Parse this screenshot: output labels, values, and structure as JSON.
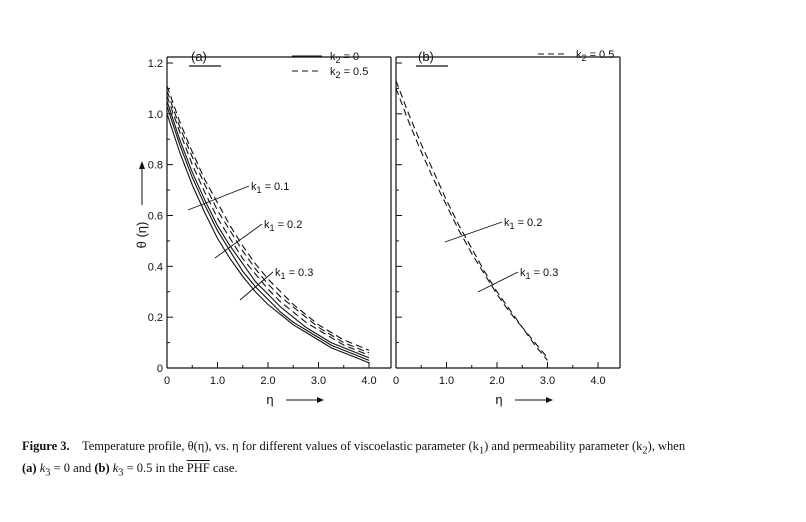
{
  "chart_data": [
    {
      "type": "line",
      "panel_label": "(a)",
      "xlabel": "η",
      "ylabel": "θ (η)",
      "xlim": [
        0,
        4.0
      ],
      "ylim": [
        0,
        1.2
      ],
      "xticks": [
        "0",
        "1.0",
        "2.0",
        "3.0",
        "4.0"
      ],
      "yticks": [
        "0",
        "0.2",
        "0.4",
        "0.6",
        "0.8",
        "1.0",
        "1.2"
      ],
      "legend": [
        {
          "label": "k2 = 0",
          "style": "solid"
        },
        {
          "label": "k2 = 0.5",
          "style": "dashed"
        }
      ],
      "annotations": [
        "k1 = 0.1",
        "k1 = 0.2",
        "k1 = 0.3"
      ],
      "x": [
        0,
        0.25,
        0.5,
        0.75,
        1.0,
        1.25,
        1.5,
        1.75,
        2.0,
        2.25,
        2.5,
        2.75,
        3.0,
        3.25,
        3.5,
        3.75,
        4.0
      ],
      "series": [
        {
          "style": "solid",
          "values": [
            1.0,
            0.85,
            0.72,
            0.61,
            0.51,
            0.43,
            0.36,
            0.3,
            0.25,
            0.21,
            0.17,
            0.14,
            0.11,
            0.08,
            0.06,
            0.04,
            0.02
          ]
        },
        {
          "style": "solid",
          "values": [
            1.03,
            0.88,
            0.75,
            0.64,
            0.54,
            0.46,
            0.38,
            0.32,
            0.27,
            0.22,
            0.18,
            0.15,
            0.12,
            0.09,
            0.07,
            0.05,
            0.03
          ]
        },
        {
          "style": "solid",
          "values": [
            1.05,
            0.9,
            0.77,
            0.66,
            0.56,
            0.48,
            0.41,
            0.34,
            0.29,
            0.24,
            0.2,
            0.16,
            0.13,
            0.1,
            0.08,
            0.06,
            0.04
          ]
        },
        {
          "style": "dashed",
          "values": [
            1.07,
            0.93,
            0.8,
            0.69,
            0.59,
            0.51,
            0.43,
            0.37,
            0.31,
            0.26,
            0.22,
            0.18,
            0.15,
            0.12,
            0.09,
            0.07,
            0.05
          ]
        },
        {
          "style": "dashed",
          "values": [
            1.09,
            0.95,
            0.83,
            0.72,
            0.62,
            0.54,
            0.46,
            0.39,
            0.33,
            0.28,
            0.24,
            0.2,
            0.16,
            0.13,
            0.1,
            0.08,
            0.06
          ]
        },
        {
          "style": "dashed",
          "values": [
            1.11,
            0.97,
            0.85,
            0.74,
            0.65,
            0.56,
            0.48,
            0.41,
            0.35,
            0.3,
            0.25,
            0.21,
            0.17,
            0.14,
            0.11,
            0.09,
            0.07
          ]
        }
      ]
    },
    {
      "type": "line",
      "panel_label": "(b)",
      "xlabel": "η",
      "xlim": [
        0,
        4.0
      ],
      "ylim": [
        0,
        1.2
      ],
      "xticks": [
        "0",
        "1.0",
        "2.0",
        "3.0",
        "4.0"
      ],
      "legend": [
        {
          "label": "k2 = 0.5",
          "style": "dashed"
        }
      ],
      "annotations": [
        "k1 = 0.2",
        "k1 = 0.3"
      ],
      "x": [
        0,
        0.25,
        0.5,
        0.75,
        1.0,
        1.25,
        1.5,
        1.75,
        2.0,
        2.25,
        2.5,
        2.75,
        3.0
      ],
      "series": [
        {
          "style": "dashed",
          "values": [
            1.1,
            0.97,
            0.85,
            0.74,
            0.64,
            0.54,
            0.45,
            0.37,
            0.29,
            0.22,
            0.16,
            0.09,
            0.03
          ]
        },
        {
          "style": "dashed",
          "values": [
            1.13,
            1.0,
            0.88,
            0.77,
            0.66,
            0.56,
            0.47,
            0.38,
            0.3,
            0.23,
            0.16,
            0.1,
            0.04
          ]
        }
      ]
    }
  ],
  "caption": {
    "figure": "Figure 3.",
    "text1": "Temperature profile, θ(η), vs. η for different values of viscoelastic parameter (k",
    "sub1": "1",
    "text2": ") and permeability parameter (k",
    "sub2": "2",
    "text3": "), when",
    "a": "(a)",
    "k3a": " k",
    "sub3a": "3",
    "val_a": " = 0 and ",
    "b": "(b)",
    "k3b": " k",
    "sub3b": "3",
    "val_b": " = 0.5 in the ",
    "phf": "PHF",
    "end": " case."
  }
}
